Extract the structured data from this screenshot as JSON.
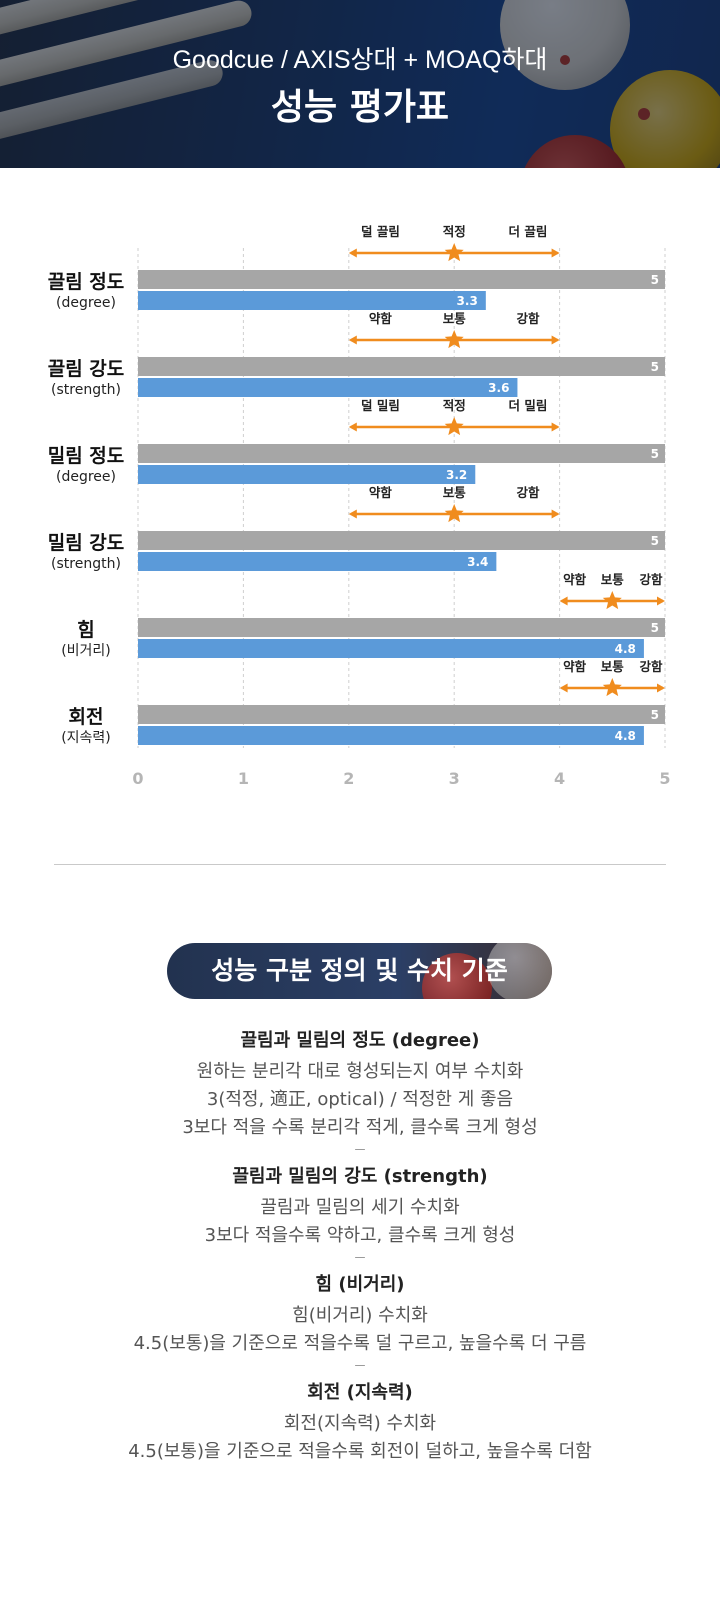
{
  "header": {
    "subtitle": "Goodcue / AXIS상대 + MOAQ하대",
    "title": "성능 평가표"
  },
  "chart_data": {
    "type": "bar",
    "orientation": "horizontal",
    "xlim": [
      0,
      5
    ],
    "xticks": [
      "0",
      "1",
      "2",
      "3",
      "4",
      "5"
    ],
    "grid": true,
    "colors": {
      "max": "#a6a6a6",
      "value": "#5b9ad9",
      "marker": "#f08c1e"
    },
    "rows": [
      {
        "title": "끌림 정도",
        "subtitle": "(degree)",
        "max": 5,
        "value": 3.3,
        "max_label": "5",
        "value_label": "3.3",
        "scale": {
          "from": 2,
          "to": 4,
          "star": 3,
          "labels": [
            "덜 끌림",
            "적정",
            "더 끌림"
          ]
        }
      },
      {
        "title": "끌림 강도",
        "subtitle": "(strength)",
        "max": 5,
        "value": 3.6,
        "max_label": "5",
        "value_label": "3.6",
        "scale": {
          "from": 2,
          "to": 4,
          "star": 3,
          "labels": [
            "약함",
            "보통",
            "강함"
          ]
        }
      },
      {
        "title": "밀림 정도",
        "subtitle": "(degree)",
        "max": 5,
        "value": 3.2,
        "max_label": "5",
        "value_label": "3.2",
        "scale": {
          "from": 2,
          "to": 4,
          "star": 3,
          "labels": [
            "덜 밀림",
            "적정",
            "더 밀림"
          ]
        }
      },
      {
        "title": "밀림 강도",
        "subtitle": "(strength)",
        "max": 5,
        "value": 3.4,
        "max_label": "5",
        "value_label": "3.4",
        "scale": {
          "from": 2,
          "to": 4,
          "star": 3,
          "labels": [
            "약함",
            "보통",
            "강함"
          ]
        }
      },
      {
        "title": "힘",
        "subtitle": "(비거리)",
        "max": 5,
        "value": 4.8,
        "max_label": "5",
        "value_label": "4.8",
        "scale": {
          "from": 4,
          "to": 5,
          "star": 4.5,
          "labels": [
            "약함",
            "보통",
            "강함"
          ]
        }
      },
      {
        "title": "회전",
        "subtitle": "(지속력)",
        "max": 5,
        "value": 4.8,
        "max_label": "5",
        "value_label": "4.8",
        "scale": {
          "from": 4,
          "to": 5,
          "star": 4.5,
          "labels": [
            "약함",
            "보통",
            "강함"
          ]
        }
      }
    ]
  },
  "definitions": {
    "heading": "성능 구분 정의 및 수치 기준",
    "separator": "ㅡ",
    "items": [
      {
        "title": "끌림과 밀림의 정도 (degree)",
        "lines": [
          "원하는 분리각 대로 형성되는지 여부 수치화",
          "3(적정, 適正, optical) / 적정한 게 좋음",
          "3보다 적을 수록 분리각 적게, 클수록 크게 형성"
        ]
      },
      {
        "title": "끌림과 밀림의 강도 (strength)",
        "lines": [
          "끌림과 밀림의 세기 수치화",
          "3보다 적을수록 약하고, 클수록 크게 형성"
        ]
      },
      {
        "title": "힘 (비거리)",
        "lines": [
          "힘(비거리) 수치화",
          "4.5(보통)을 기준으로 적을수록 덜 구르고, 높을수록 더 구름"
        ]
      },
      {
        "title": "회전 (지속력)",
        "lines": [
          "회전(지속력) 수치화",
          "4.5(보통)을 기준으로 적을수록 회전이 덜하고, 높을수록 더함"
        ]
      }
    ]
  }
}
